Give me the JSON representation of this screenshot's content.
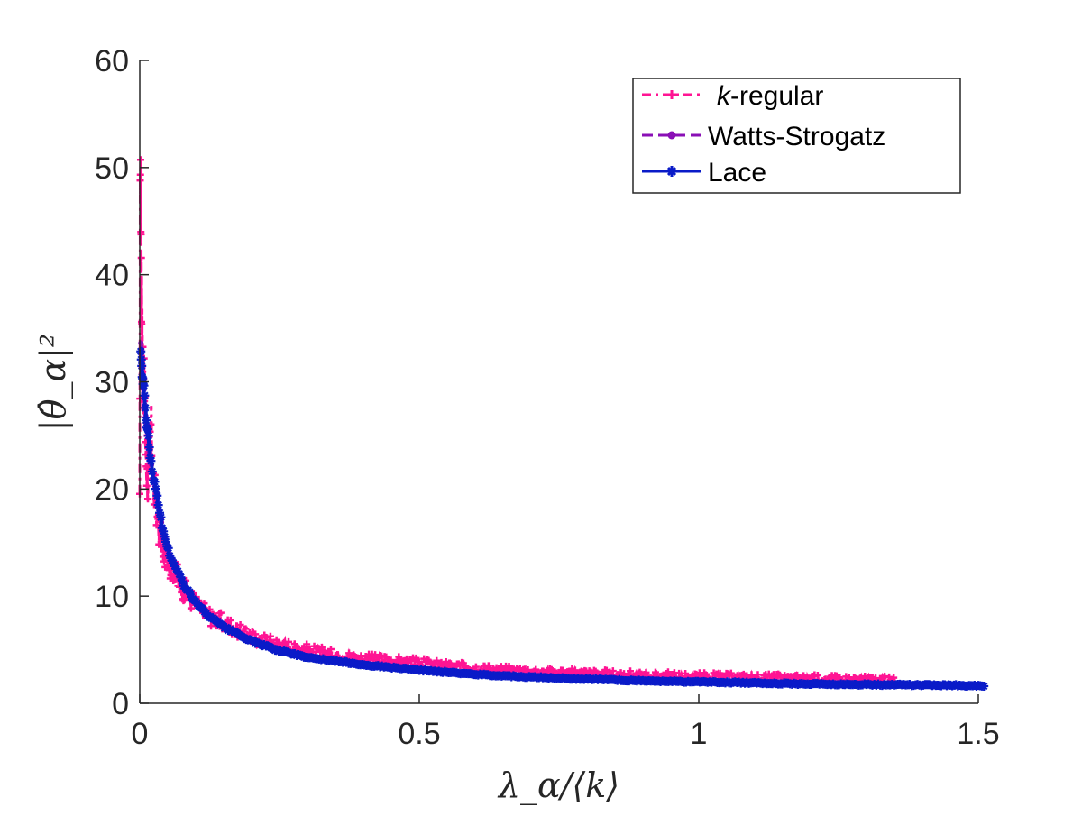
{
  "chart_data": {
    "type": "line",
    "title": "",
    "xlabel": "λ_α/⟨k⟩",
    "ylabel": "|θ̂_α|²",
    "xlim": [
      0,
      1.5
    ],
    "ylim": [
      0,
      60
    ],
    "xticks": [
      0,
      0.5,
      1,
      1.5
    ],
    "xtick_labels": [
      "0",
      "0.5",
      "1",
      "1.5"
    ],
    "yticks": [
      0,
      10,
      20,
      30,
      40,
      50,
      60
    ],
    "ytick_labels": [
      "0",
      "10",
      "20",
      "30",
      "40",
      "50",
      "60"
    ],
    "grid": false,
    "legend_position": "top-right",
    "series": [
      {
        "name": "k-regular",
        "legend_prefix": "k",
        "legend_suffix": "-regular",
        "color": "#ff1493",
        "line_style": "dash-dot",
        "marker": "plus",
        "x": [
          0.0,
          0.001,
          0.002,
          0.003,
          0.004,
          0.005,
          0.006,
          0.008,
          0.01,
          0.012,
          0.015,
          0.02,
          0.025,
          0.03,
          0.035,
          0.04,
          0.05,
          0.06,
          0.07,
          0.08,
          0.1,
          0.12,
          0.15,
          0.18,
          0.2,
          0.25,
          0.3,
          0.35,
          0.4,
          0.5,
          0.6,
          0.7,
          0.8,
          0.9,
          1.0,
          1.1,
          1.2,
          1.3,
          1.35
        ],
        "y": [
          18.0,
          51.5,
          48.0,
          40.0,
          35.0,
          30.0,
          33.0,
          28.0,
          25.0,
          22.0,
          20.0,
          26.0,
          20.0,
          18.5,
          16.0,
          15.0,
          13.5,
          12.5,
          11.5,
          10.5,
          9.3,
          8.3,
          7.5,
          6.8,
          6.2,
          5.5,
          5.0,
          4.5,
          4.2,
          3.8,
          3.3,
          3.0,
          2.8,
          2.6,
          2.5,
          2.4,
          2.3,
          2.2,
          2.1
        ]
      },
      {
        "name": "Watts-Strogatz",
        "color": "#8a0fb6",
        "line_style": "dashed",
        "marker": "dot",
        "x": [
          0.002,
          0.005,
          0.01,
          0.015,
          0.02,
          0.03,
          0.04,
          0.05,
          0.06,
          0.08,
          0.1,
          0.12,
          0.15,
          0.2,
          0.25,
          0.3,
          0.4,
          0.5,
          0.6,
          0.7,
          0.8,
          0.9,
          1.0,
          1.1,
          1.2,
          1.3,
          1.4,
          1.44
        ],
        "y": [
          34.0,
          31.0,
          27.5,
          25.0,
          22.5,
          19.5,
          16.5,
          14.5,
          13.0,
          11.0,
          9.5,
          8.4,
          7.2,
          5.9,
          5.0,
          4.4,
          3.7,
          3.2,
          2.8,
          2.5,
          2.3,
          2.1,
          2.0,
          1.9,
          1.8,
          1.75,
          1.7,
          1.65
        ]
      },
      {
        "name": "Lace",
        "color": "#0a1bc8",
        "line_style": "solid",
        "marker": "star",
        "x": [
          0.002,
          0.004,
          0.006,
          0.01,
          0.015,
          0.02,
          0.03,
          0.04,
          0.05,
          0.06,
          0.08,
          0.1,
          0.12,
          0.15,
          0.2,
          0.25,
          0.3,
          0.4,
          0.5,
          0.6,
          0.7,
          0.8,
          0.9,
          1.0,
          1.1,
          1.2,
          1.3,
          1.4,
          1.45,
          1.51
        ],
        "y": [
          33.0,
          31.0,
          30.0,
          27.5,
          25.0,
          22.5,
          19.5,
          16.5,
          14.5,
          13.0,
          11.0,
          9.4,
          8.3,
          7.1,
          5.8,
          4.9,
          4.3,
          3.6,
          3.1,
          2.7,
          2.45,
          2.25,
          2.1,
          2.0,
          1.9,
          1.8,
          1.75,
          1.7,
          1.7,
          1.6
        ]
      }
    ]
  }
}
